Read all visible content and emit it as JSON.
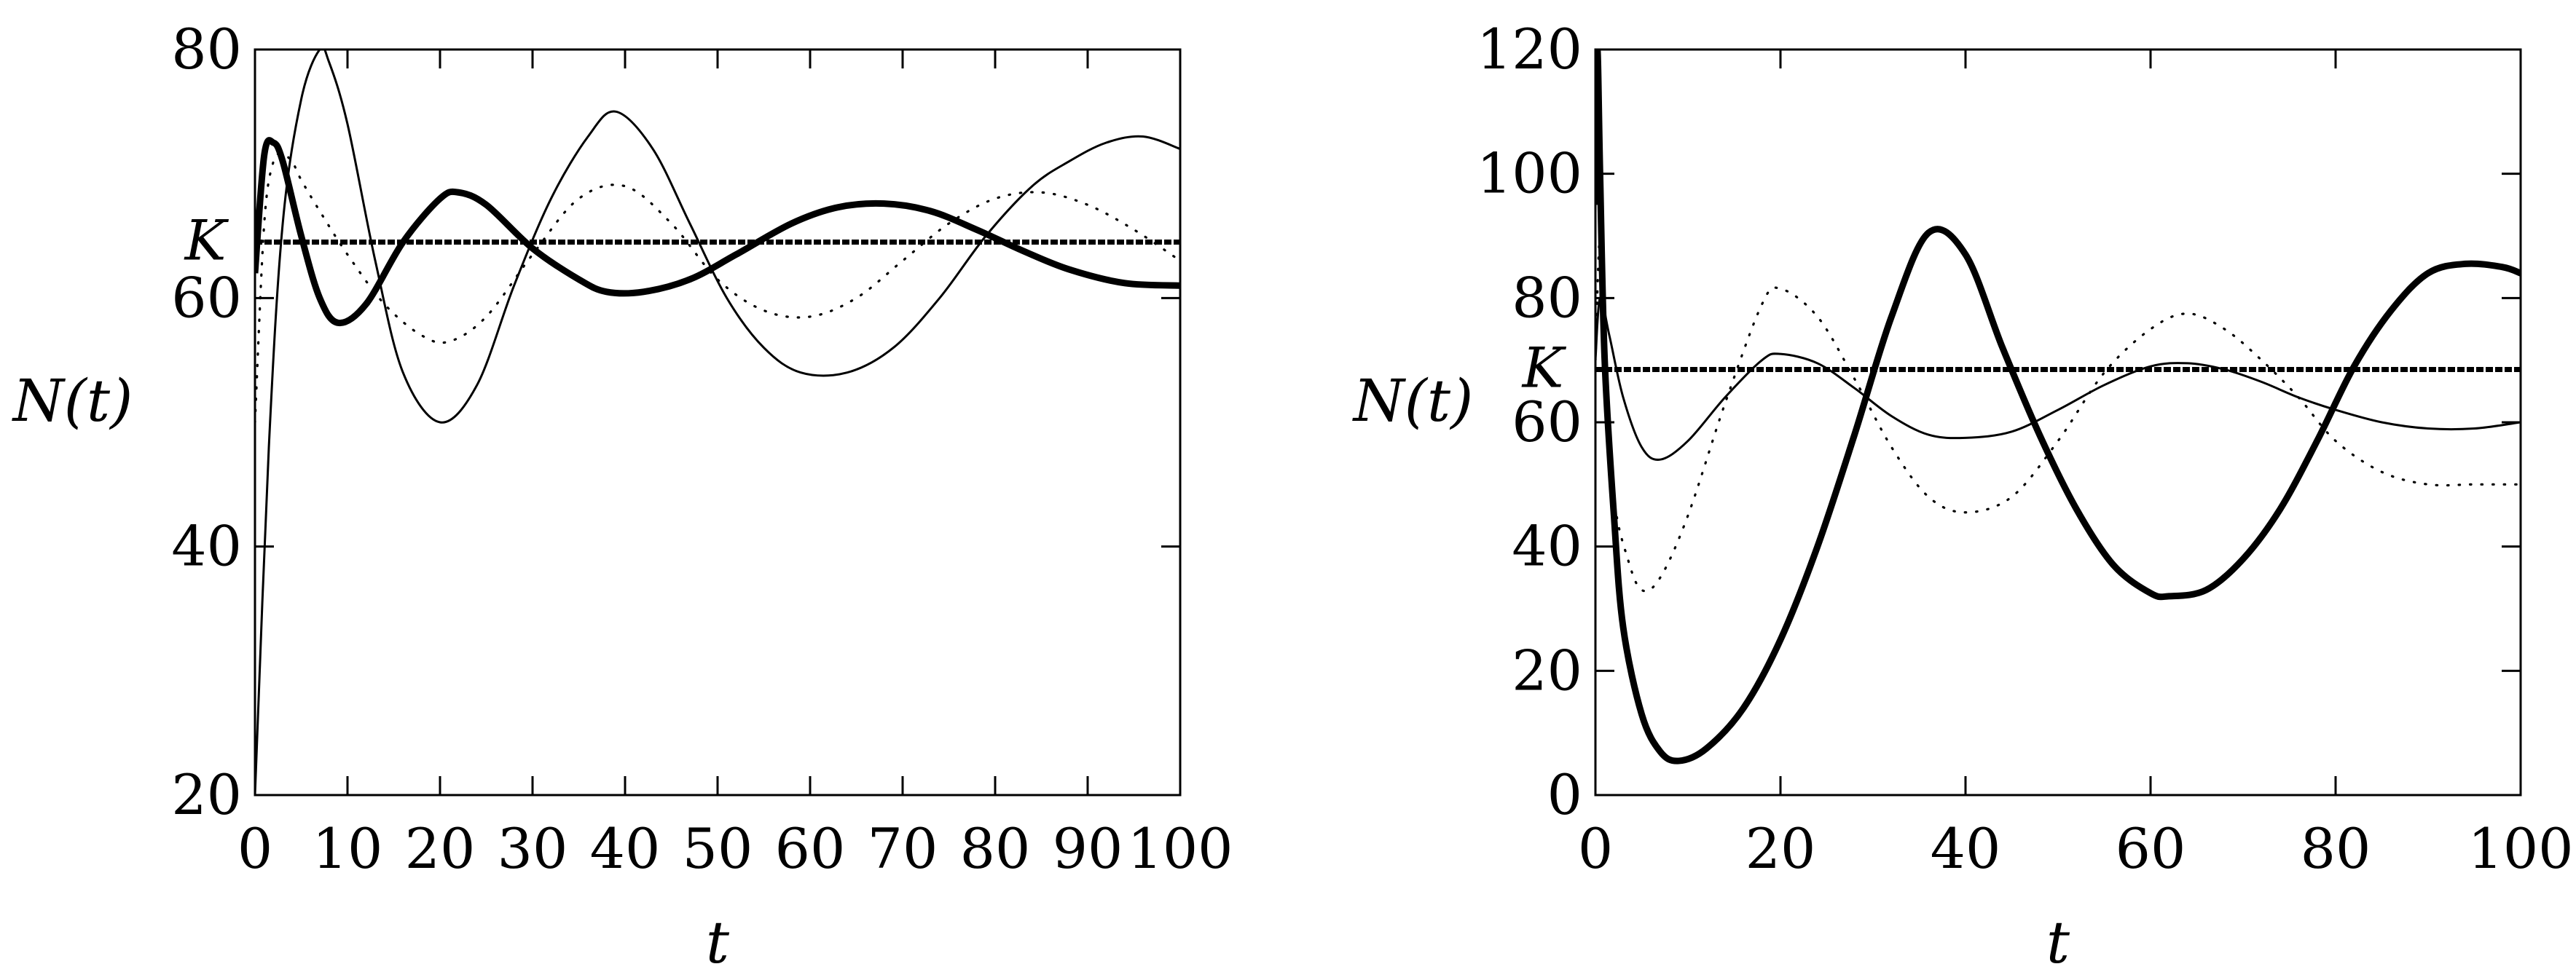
{
  "chart_data": [
    {
      "type": "line",
      "title": "",
      "xlabel": "t",
      "ylabel": "N(t)",
      "xlim": [
        0,
        100
      ],
      "ylim": [
        20,
        80
      ],
      "xticks": [
        0,
        10,
        20,
        30,
        40,
        50,
        60,
        70,
        80,
        90,
        100
      ],
      "xtick_labels": [
        "0",
        "10",
        "20",
        "30",
        "40",
        "50",
        "60",
        "70",
        "80",
        "90",
        "100"
      ],
      "yticks": [
        20,
        40,
        60,
        80
      ],
      "ytick_labels": [
        "20",
        "40",
        "60",
        "80"
      ],
      "grid": false,
      "annotations": [
        {
          "text": "K",
          "y": 64.5
        }
      ],
      "series": [
        {
          "name": "thin",
          "style": "thin",
          "x": [
            0,
            1.5,
            3,
            5,
            7,
            8,
            10,
            13,
            16,
            20,
            24,
            28,
            32,
            36,
            39,
            43,
            47,
            51,
            55,
            59,
            64,
            69,
            74,
            79,
            84,
            88,
            92,
            96,
            100
          ],
          "values": [
            20,
            48,
            66,
            76,
            80,
            79,
            74,
            63,
            54,
            50,
            53,
            61,
            68,
            73,
            75,
            72,
            66,
            60,
            56,
            54,
            54,
            56,
            60,
            65,
            69,
            71,
            72.5,
            73,
            72
          ]
        },
        {
          "name": "bold",
          "style": "bold",
          "x": [
            0,
            1,
            2,
            3,
            5,
            7,
            9,
            12,
            16,
            20,
            22,
            25,
            30,
            35,
            38,
            42,
            47,
            52,
            58,
            63,
            68,
            73,
            78,
            83,
            88,
            94,
            100
          ],
          "values": [
            62,
            71.5,
            72.5,
            71,
            65,
            60,
            58,
            59.5,
            64.5,
            68,
            68.5,
            67.5,
            64,
            61.5,
            60.5,
            60.5,
            61.5,
            63.5,
            66,
            67.3,
            67.6,
            67,
            65.5,
            63.8,
            62.3,
            61.2,
            61
          ]
        },
        {
          "name": "dotted",
          "style": "dotted",
          "x": [
            0,
            1,
            2,
            3,
            4,
            5,
            7,
            10,
            14,
            18,
            21,
            25,
            30,
            35,
            40,
            45,
            50,
            55,
            60,
            65,
            70,
            75,
            80,
            85,
            90,
            95,
            100
          ],
          "values": [
            50,
            66,
            71,
            71.5,
            71,
            69.5,
            67,
            63.5,
            59.5,
            57,
            56.5,
            58.5,
            63.5,
            68,
            69,
            66,
            61.5,
            59,
            58.5,
            60,
            63,
            66,
            68,
            68.5,
            67.5,
            65.5,
            63
          ]
        },
        {
          "name": "K",
          "style": "dashed-bold",
          "x": [
            0,
            100
          ],
          "values": [
            64.5,
            64.5
          ]
        }
      ]
    },
    {
      "type": "line",
      "title": "",
      "xlabel": "t",
      "ylabel": "N(t)",
      "xlim": [
        0,
        100
      ],
      "ylim": [
        0,
        120
      ],
      "xticks": [
        0,
        20,
        40,
        60,
        80,
        100
      ],
      "xtick_labels": [
        "0",
        "20",
        "40",
        "60",
        "80",
        "100"
      ],
      "yticks": [
        0,
        20,
        40,
        60,
        80,
        100,
        120
      ],
      "ytick_labels": [
        "0",
        "20",
        "40",
        "60",
        "80",
        "100",
        "120"
      ],
      "grid": false,
      "annotations": [
        {
          "text": "K",
          "y": 68.5
        }
      ],
      "series": [
        {
          "name": "thin",
          "style": "thin",
          "x": [
            0,
            0.5,
            1.5,
            3,
            5,
            7,
            10,
            14,
            18,
            20,
            24,
            28,
            32,
            36,
            40,
            45,
            50,
            55,
            60,
            64,
            68,
            72,
            76,
            80,
            85,
            90,
            95,
            100
          ],
          "values": [
            70,
            80,
            74,
            64,
            56,
            54,
            57,
            64,
            70,
            71,
            69.5,
            65.5,
            61,
            58,
            57.5,
            58.5,
            62,
            66,
            69,
            69.5,
            68.5,
            66.5,
            64,
            62,
            60,
            59,
            59,
            60
          ]
        },
        {
          "name": "bold",
          "style": "bold",
          "x": [
            0,
            0.2,
            0.5,
            1,
            2,
            3,
            5,
            7,
            9,
            12,
            16,
            20,
            24,
            28,
            32,
            36,
            40,
            44,
            48,
            52,
            56,
            60,
            62,
            66,
            70,
            74,
            78,
            82,
            86,
            90,
            94,
            98,
            100
          ],
          "values": [
            95,
            120,
            100,
            70,
            45,
            27,
            13,
            7,
            5.5,
            7.5,
            14,
            25,
            40,
            58,
            77,
            90.5,
            87,
            72,
            58,
            46,
            37,
            32.5,
            32,
            33,
            38,
            46,
            57,
            69,
            78,
            84,
            85.5,
            85,
            84
          ]
        },
        {
          "name": "dotted",
          "style": "dotted",
          "x": [
            0,
            0.5,
            1,
            2,
            3.5,
            5,
            7,
            10,
            14,
            18,
            20,
            24,
            28,
            32,
            36,
            40,
            45,
            50,
            55,
            60,
            64,
            68,
            72,
            76,
            80,
            85,
            90,
            95,
            100
          ],
          "values": [
            70,
            90,
            70,
            48,
            38,
            33,
            35,
            45,
            63,
            79,
            81.5,
            77,
            67,
            56,
            48,
            45.5,
            48,
            57,
            68,
            75,
            77.5,
            75,
            70,
            64,
            57,
            52,
            50,
            50,
            50
          ]
        },
        {
          "name": "K",
          "style": "dashed-bold",
          "x": [
            0,
            100
          ],
          "values": [
            68.5,
            68.5
          ]
        }
      ]
    }
  ]
}
